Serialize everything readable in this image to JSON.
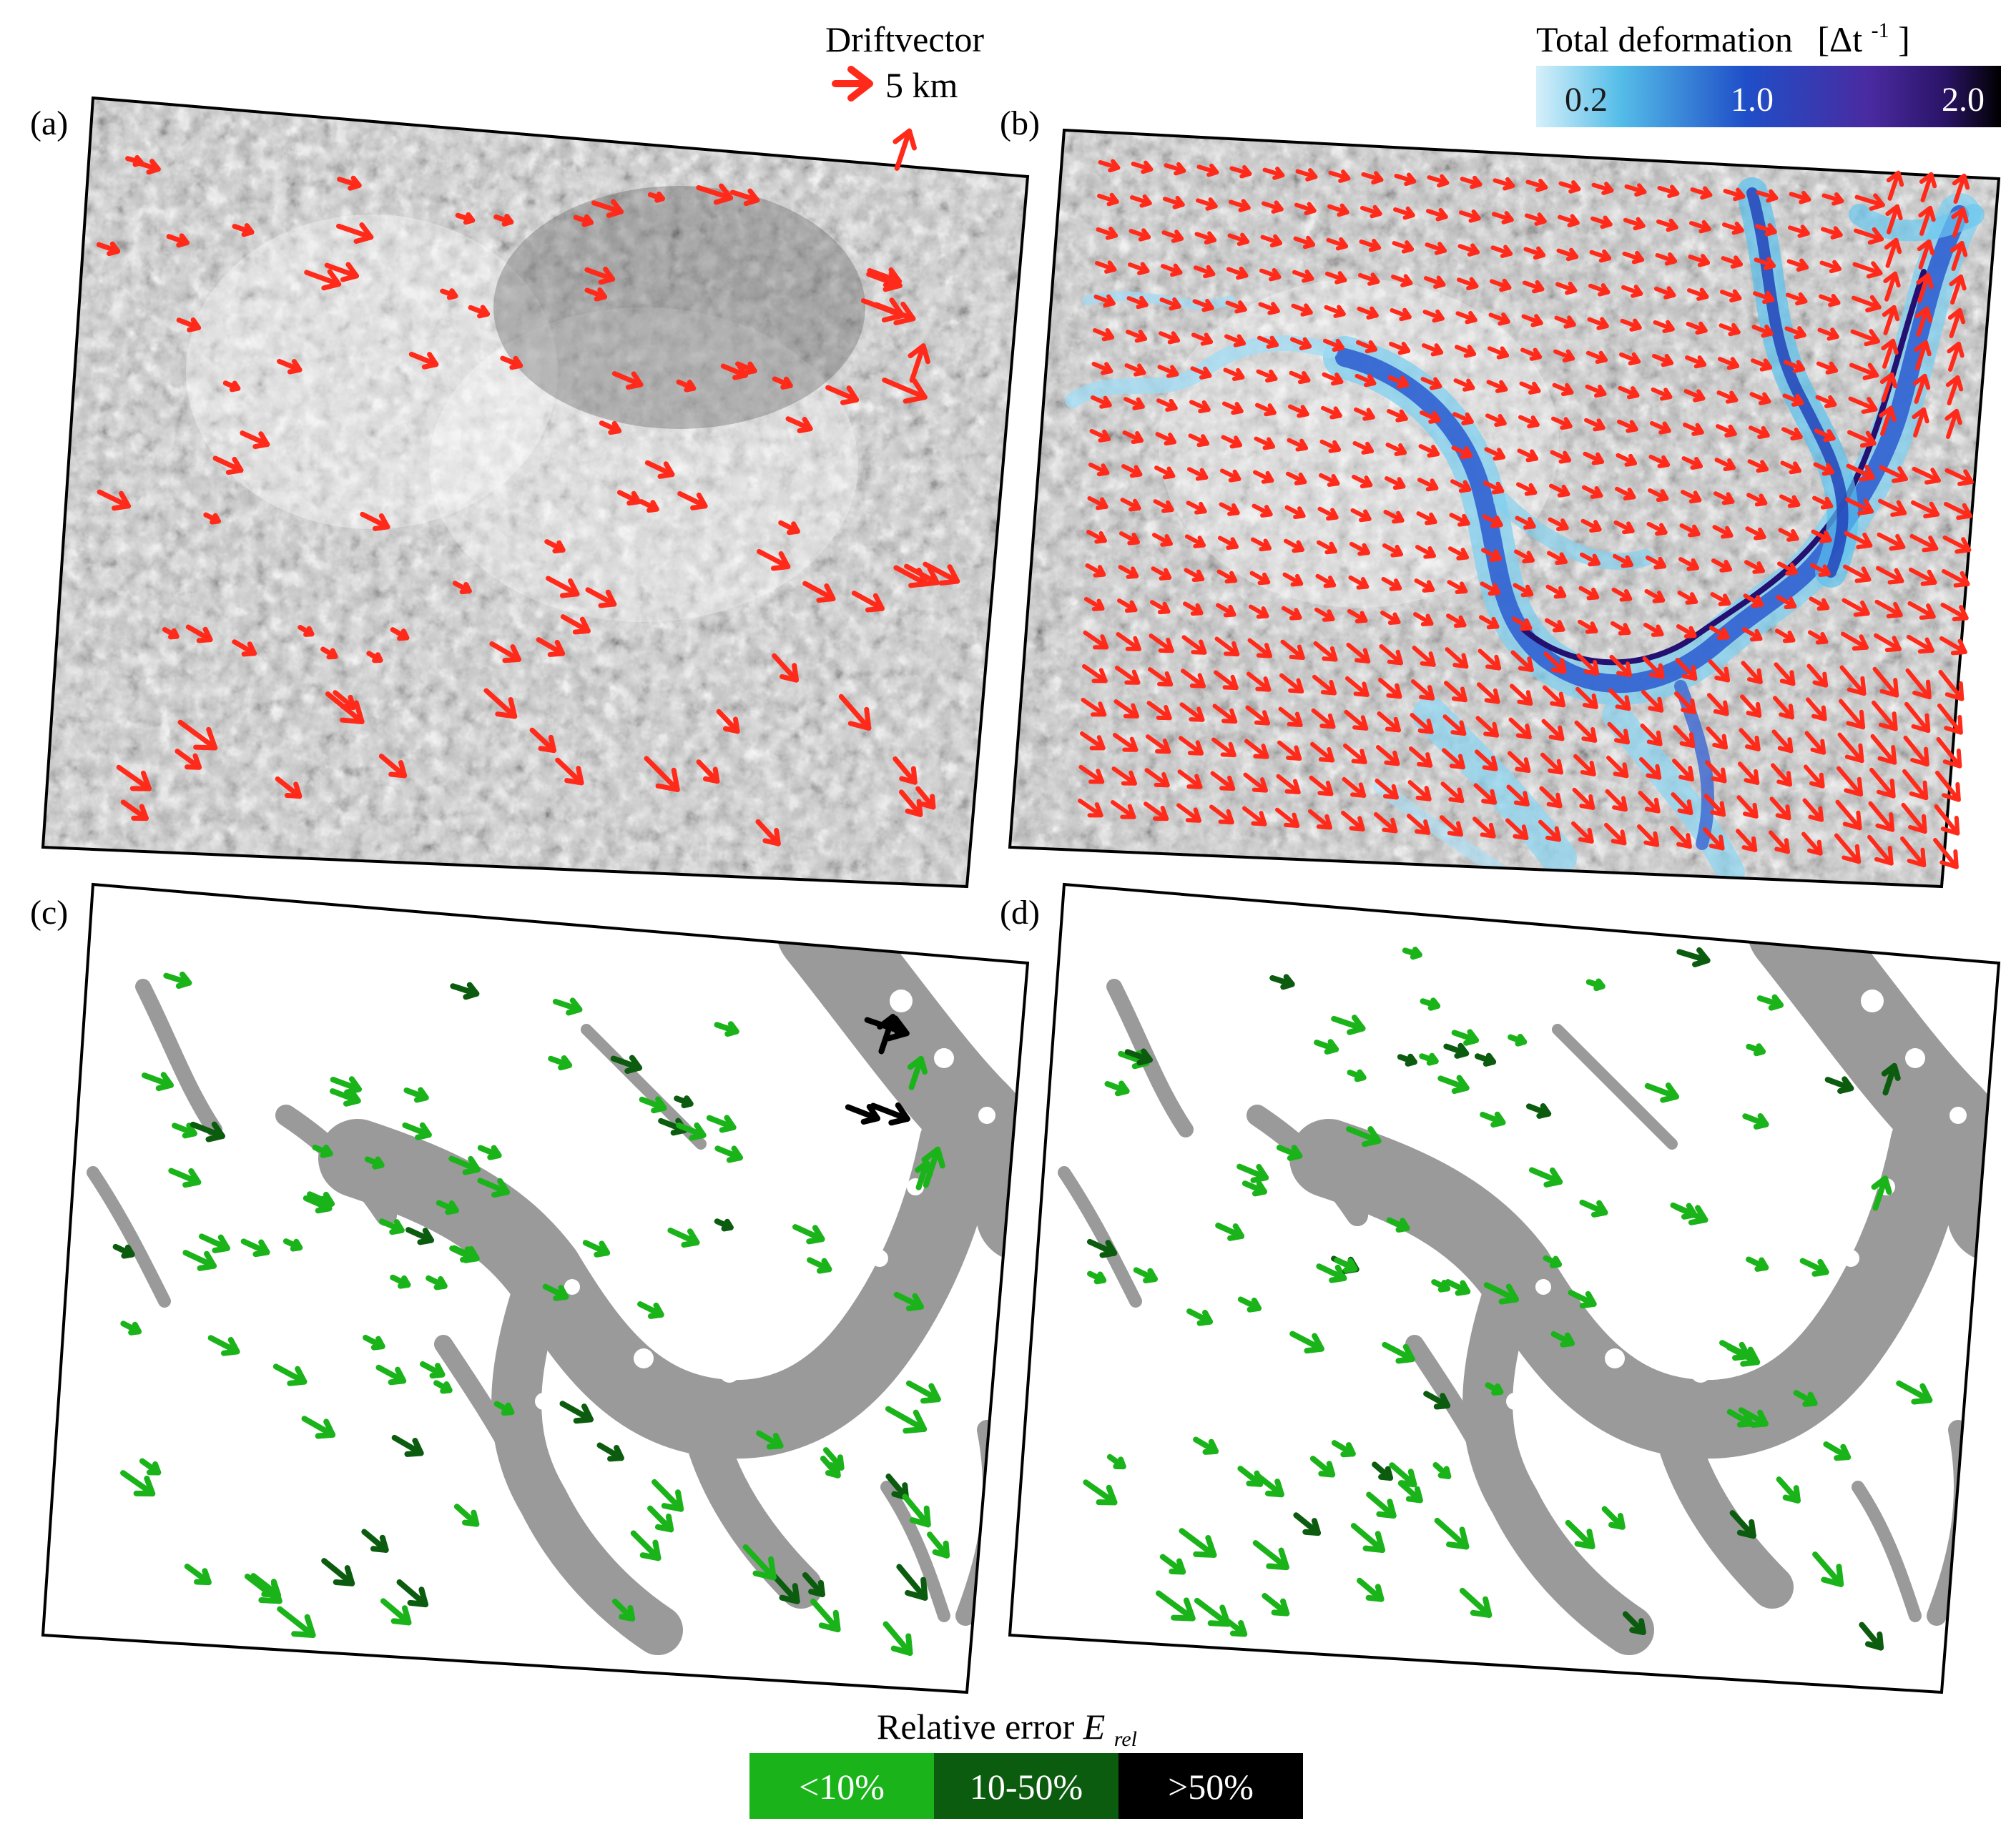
{
  "header": {
    "driftvector_title": "Driftvector",
    "driftvector_scale": "5 km",
    "deformation_title": "Total deformation",
    "deformation_unit": "[Δt",
    "deformation_unit_sup": "-1",
    "deformation_unit_close": "]",
    "colorbar_ticks": [
      "0.2",
      "1.0",
      "2.0"
    ]
  },
  "panels": [
    {
      "label": "(a)"
    },
    {
      "label": "(b)"
    },
    {
      "label": "(c)"
    },
    {
      "label": "(d)"
    }
  ],
  "footer": {
    "title_main": "Relative error ",
    "title_symbol": "E",
    "title_sub": "rel",
    "legend": [
      {
        "label": "<10%",
        "color": "#1ab41a"
      },
      {
        "label": "10-50%",
        "color": "#0c5c10"
      },
      {
        "label": ">50%",
        "color": "#000000"
      }
    ]
  },
  "colors": {
    "drift_arrow": "#ff2a1a",
    "deformation_low": "#bfe8f8",
    "deformation_mid": "#2a5ad0",
    "deformation_high": "#3a1e8c",
    "deformation_max": "#000000",
    "mask_gray": "#9a9a9a"
  },
  "icons": {
    "scale_arrow": "arrow-icon"
  }
}
